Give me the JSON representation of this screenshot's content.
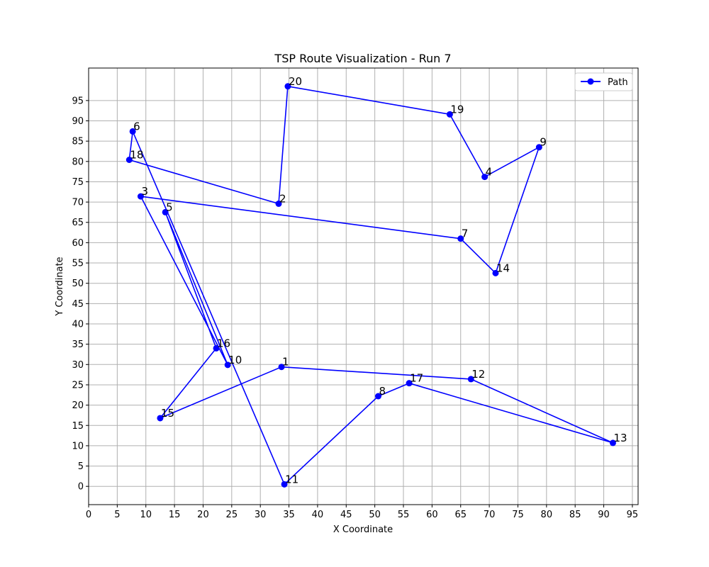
{
  "chart_data": {
    "type": "line",
    "title": "TSP Route Visualization - Run 7",
    "xlabel": "X Coordinate",
    "ylabel": "Y Coordinate",
    "xlim": [
      0,
      96
    ],
    "ylim": [
      -4.5,
      103
    ],
    "xticks": [
      0,
      5,
      10,
      15,
      20,
      25,
      30,
      35,
      40,
      45,
      50,
      55,
      60,
      65,
      70,
      75,
      80,
      85,
      90,
      95
    ],
    "yticks": [
      0,
      5,
      10,
      15,
      20,
      25,
      30,
      35,
      40,
      45,
      50,
      55,
      60,
      65,
      70,
      75,
      80,
      85,
      90,
      95
    ],
    "grid": true,
    "legend_position": "top-right",
    "series": [
      {
        "name": "Path",
        "color": "#0000ff",
        "marker": "circle",
        "points": [
          {
            "label": "1",
            "x": 33.7,
            "y": 29.4
          },
          {
            "label": "12",
            "x": 66.8,
            "y": 26.4
          },
          {
            "label": "13",
            "x": 91.6,
            "y": 10.7
          },
          {
            "label": "17",
            "x": 56.0,
            "y": 25.4
          },
          {
            "label": "8",
            "x": 50.6,
            "y": 22.2
          },
          {
            "label": "11",
            "x": 34.2,
            "y": 0.5
          },
          {
            "label": "6",
            "x": 7.7,
            "y": 87.4
          },
          {
            "label": "18",
            "x": 7.1,
            "y": 80.4
          },
          {
            "label": "2",
            "x": 33.2,
            "y": 69.6
          },
          {
            "label": "20",
            "x": 34.8,
            "y": 98.5
          },
          {
            "label": "19",
            "x": 63.1,
            "y": 91.6
          },
          {
            "label": "4",
            "x": 69.2,
            "y": 76.2
          },
          {
            "label": "9",
            "x": 78.7,
            "y": 83.5
          },
          {
            "label": "14",
            "x": 71.1,
            "y": 52.5
          },
          {
            "label": "7",
            "x": 65.0,
            "y": 61.0
          },
          {
            "label": "3",
            "x": 9.1,
            "y": 71.4
          },
          {
            "label": "10",
            "x": 24.3,
            "y": 29.9
          },
          {
            "label": "5",
            "x": 13.4,
            "y": 67.5
          },
          {
            "label": "16",
            "x": 22.3,
            "y": 34.0
          },
          {
            "label": "15",
            "x": 12.5,
            "y": 16.8
          },
          {
            "label": "1",
            "x": 33.7,
            "y": 29.4
          }
        ]
      }
    ]
  }
}
